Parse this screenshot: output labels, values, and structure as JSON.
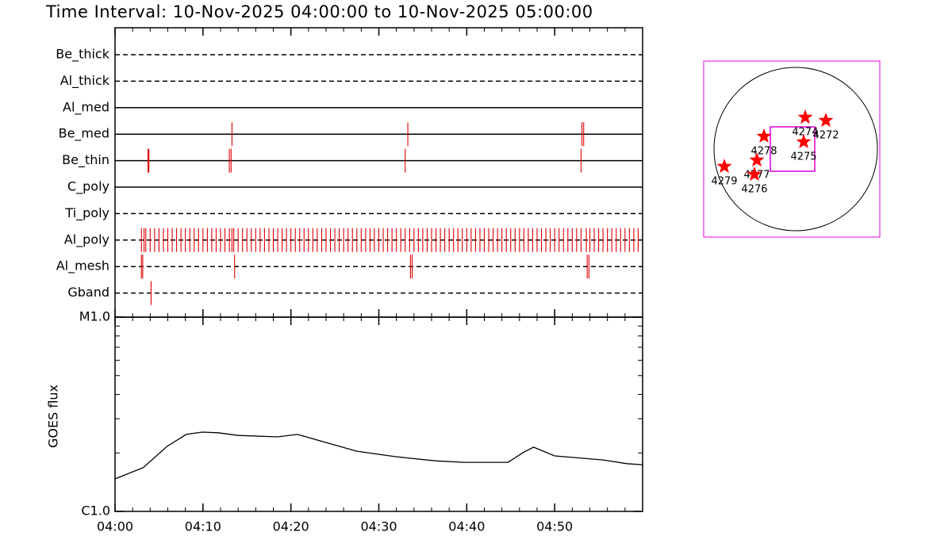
{
  "chart_data": [
    {
      "type": "timeline",
      "title": "Time Interval: 10-Nov-2025 04:00:00 to 10-Nov-2025 05:00:00",
      "categories": [
        "Be_thick",
        "Al_thick",
        "Al_med",
        "Be_med",
        "Be_thin",
        "C_poly",
        "Ti_poly",
        "Al_poly",
        "Al_mesh",
        "Gband"
      ],
      "line_styles": [
        "dashed",
        "dashed",
        "solid",
        "solid",
        "solid",
        "solid",
        "dashed",
        "dashed",
        "dashed",
        "dashed"
      ],
      "events": [
        [],
        [],
        [],
        [
          13.3,
          33.3,
          53.1,
          53.3
        ],
        [
          3.75,
          3.85,
          13.0,
          13.2,
          33.0,
          53.0
        ],
        [],
        [],
        [
          3,
          3.3,
          3.5,
          4,
          4.5,
          5,
          5.5,
          6,
          6.5,
          7,
          7.5,
          8,
          8.5,
          9,
          9.5,
          10,
          10.5,
          11,
          11.5,
          12,
          12.5,
          13,
          13.3,
          13.5,
          14,
          14.5,
          15,
          15.5,
          16,
          16.5,
          17,
          17.5,
          18,
          18.5,
          19,
          19.5,
          20,
          20.5,
          21,
          21.5,
          22,
          22.5,
          23,
          23.5,
          24,
          24.5,
          25,
          25.5,
          26,
          26.5,
          27,
          27.5,
          28,
          28.5,
          29,
          29.5,
          30,
          30.5,
          31,
          31.5,
          32,
          32.5,
          33,
          33.5,
          34,
          34.5,
          35,
          35.5,
          36,
          36.5,
          37,
          37.5,
          38,
          38.5,
          39,
          39.5,
          40,
          40.5,
          41,
          41.5,
          42,
          42.5,
          43,
          43.5,
          44,
          44.5,
          45,
          45.5,
          46,
          46.5,
          47,
          47.5,
          48,
          48.5,
          49,
          49.5,
          50,
          50.5,
          51,
          51.5,
          52,
          52.5,
          53,
          53.6,
          54,
          54.5,
          55,
          55.5,
          56,
          56.5,
          57,
          57.5,
          58,
          58.5,
          59,
          59.5
        ],
        [
          3.0,
          3.15,
          13.6,
          33.6,
          33.8,
          53.7,
          53.9
        ],
        [
          4.1
        ]
      ],
      "color": "#e00000",
      "xlim": [
        0,
        60
      ]
    },
    {
      "type": "line",
      "ylabel": "GOES flux",
      "x": [
        0,
        3.2,
        5.9,
        8.1,
        9.9,
        11.7,
        14,
        18.5,
        20.75,
        23,
        27.5,
        32,
        36.5,
        39.7,
        44.7,
        46.5,
        47.6,
        50,
        55.5,
        58.2,
        60
      ],
      "values": [
        1.47e-06,
        1.68e-06,
        2.16e-06,
        2.49e-06,
        2.56e-06,
        2.54e-06,
        2.46e-06,
        2.42e-06,
        2.49e-06,
        2.33e-06,
        2.04e-06,
        1.91e-06,
        1.82e-06,
        1.79e-06,
        1.79e-06,
        2.02e-06,
        2.14e-06,
        1.93e-06,
        1.84e-06,
        1.76e-06,
        1.74e-06
      ],
      "color": "#000000",
      "log_scale": true,
      "xlim": [
        0,
        60
      ],
      "xticks": [
        {
          "value": 0,
          "label": "04:00"
        },
        {
          "value": 10,
          "label": "04:10"
        },
        {
          "value": 20,
          "label": "04:20"
        },
        {
          "value": 30,
          "label": "04:30"
        },
        {
          "value": 40,
          "label": "04:40"
        },
        {
          "value": 50,
          "label": "04:50"
        }
      ],
      "ylim": [
        1e-06,
        1e-05
      ],
      "yticks": [
        {
          "value": 1e-06,
          "label": "C1.0"
        },
        {
          "value": 1e-05,
          "label": "M1.0"
        }
      ]
    },
    {
      "type": "scatter",
      "labels": [
        "4274",
        "4272",
        "4275",
        "4278",
        "4277",
        "4276",
        "4279"
      ],
      "x": [
        168,
        426,
        149,
        -347,
        -436,
        -466,
        -842
      ],
      "y": [
        396,
        357,
        89,
        159,
        -139,
        -317,
        -218
      ],
      "color": "#ff0000",
      "xlim": [
        -1100,
        1100
      ],
      "ylim": [
        -1100,
        1100
      ]
    }
  ]
}
